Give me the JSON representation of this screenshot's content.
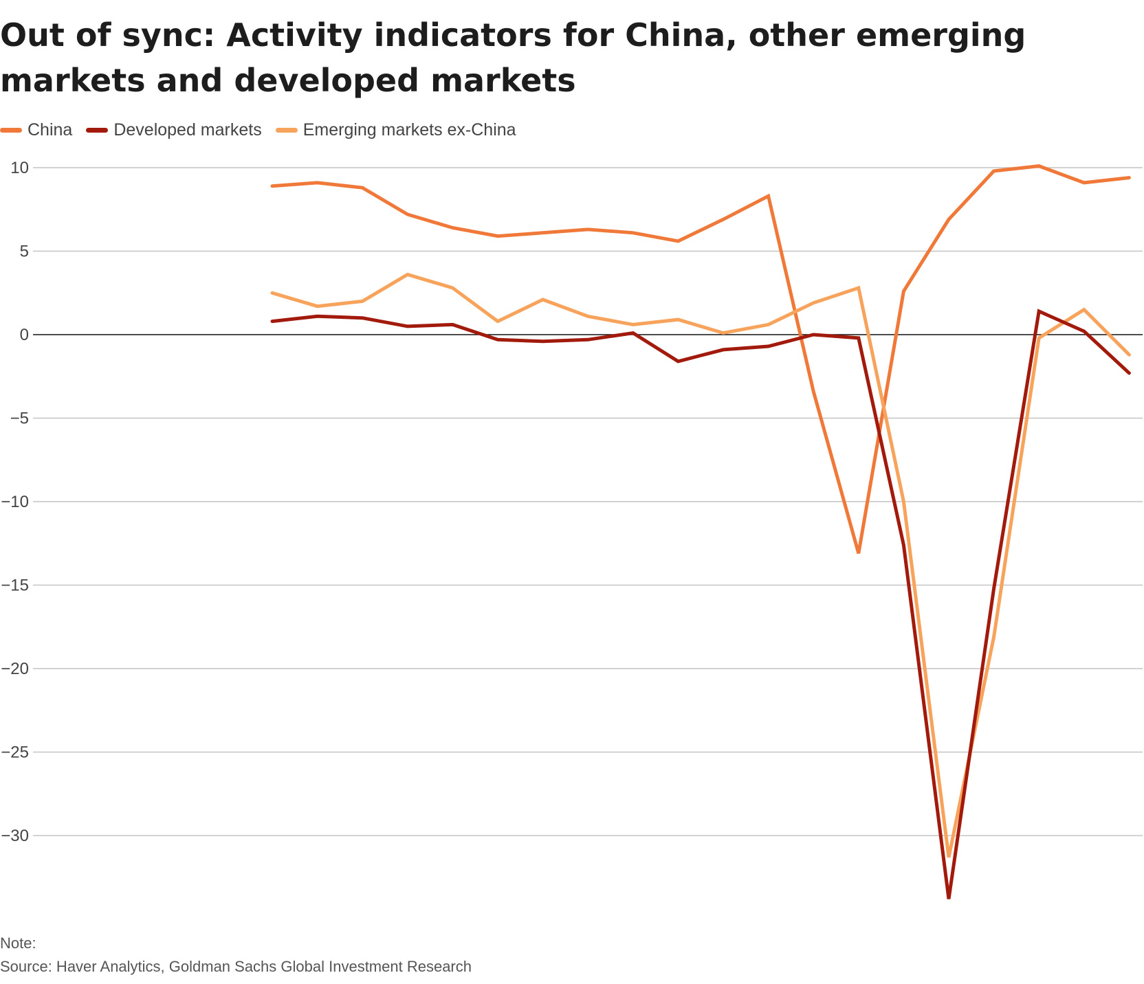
{
  "title": "Out of sync: Activity indicators for China, other emerging markets and developed markets",
  "note": "Note:",
  "source": "Source: Haver Analytics, Goldman Sachs Global Investment Research",
  "chart_data": {
    "type": "line",
    "title": "Out of sync: Activity indicators for China, other emerging markets and developed markets",
    "xlabel": "",
    "ylabel": "",
    "ylim": [
      -34,
      10
    ],
    "yticks": [
      10,
      5,
      0,
      -5,
      -10,
      -15,
      -20,
      -25,
      -30
    ],
    "ytick_labels": [
      "10",
      "5",
      "0",
      "−5",
      "−10",
      "−15",
      "−20",
      "−25",
      "−30"
    ],
    "grid": true,
    "legend": "top-left",
    "series": [
      {
        "name": "China",
        "color": "#f0793a",
        "values": [
          8.9,
          9.1,
          8.8,
          7.2,
          6.4,
          5.9,
          6.1,
          6.3,
          6.1,
          5.6,
          6.9,
          8.3,
          -3.4,
          -13.1,
          2.6,
          6.9,
          9.8,
          10.1,
          9.1,
          9.4
        ]
      },
      {
        "name": "Developed markets",
        "color": "#a11a0c",
        "values": [
          0.8,
          1.1,
          1.0,
          0.5,
          0.6,
          -0.3,
          -0.4,
          -0.3,
          0.1,
          -1.6,
          -0.9,
          -0.7,
          0.0,
          -0.2,
          -12.6,
          -33.8,
          -15.2,
          1.4,
          0.2,
          -2.3
        ]
      },
      {
        "name": "Emerging markets ex-China",
        "color": "#f7a35c",
        "values": [
          2.5,
          1.7,
          2.0,
          3.6,
          2.8,
          0.8,
          2.1,
          1.1,
          0.6,
          0.9,
          0.1,
          0.6,
          1.9,
          2.8,
          -10.0,
          -31.3,
          -18.1,
          -0.2,
          1.5,
          -1.2
        ]
      }
    ]
  }
}
